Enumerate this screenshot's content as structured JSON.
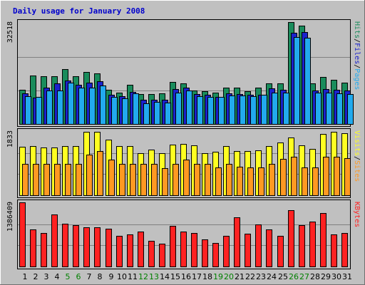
{
  "chart_data": {
    "type": "bar",
    "title": "Daily usage for January 2008",
    "categories": [
      "1",
      "2",
      "3",
      "4",
      "5",
      "6",
      "7",
      "8",
      "9",
      "10",
      "11",
      "12",
      "13",
      "14",
      "15",
      "16",
      "17",
      "18",
      "19",
      "20",
      "21",
      "22",
      "23",
      "24",
      "25",
      "26",
      "27",
      "28",
      "29",
      "30",
      "31"
    ],
    "weekend_categories": [
      "5",
      "6",
      "12",
      "13",
      "19",
      "20",
      "26",
      "27"
    ],
    "panels": [
      {
        "max_label": "32518",
        "ymax": 32518,
        "legend": [
          "Pages",
          "Files",
          "Hits"
        ],
        "series": [
          {
            "name": "Hits",
            "color": "#1a8c5c",
            "values": [
              11000,
              15400,
              15200,
              15200,
              17500,
              15300,
              16500,
              16200,
              11000,
              10100,
              12600,
              9500,
              9500,
              9700,
              13400,
              12900,
              10700,
              10400,
              10100,
              11600,
              11600,
              10400,
              11600,
              13000,
              13000,
              32518,
              31300,
              13000,
              15000,
              14100,
              13100
            ]
          },
          {
            "name": "Files",
            "color": "#1a22cc",
            "values": [
              9800,
              8500,
              11700,
              12900,
              13900,
              12600,
              13300,
              13600,
              9300,
              8800,
              10300,
              7800,
              7800,
              7800,
              11100,
              11600,
              9600,
              9300,
              8600,
              9800,
              9600,
              9300,
              9400,
              11400,
              11000,
              29000,
              29300,
              10800,
              11200,
              11000,
              10800
            ]
          },
          {
            "name": "Pages",
            "color": "#22aaee",
            "values": [
              8900,
              8600,
              10700,
              10800,
              13200,
              11500,
              11700,
              12200,
              8700,
              8200,
              9800,
              6700,
              7100,
              6900,
              9900,
              10700,
              8900,
              8700,
              8600,
              9000,
              9100,
              8800,
              9400,
              10000,
              10000,
              27700,
              27500,
              9900,
              9900,
              9800,
              9500
            ]
          }
        ]
      },
      {
        "max_label": "1833",
        "ymax": 1833,
        "legend": [
          "Sites",
          "Visits"
        ],
        "series": [
          {
            "name": "Visits",
            "color": "#ffff22",
            "values": [
              1375,
              1400,
              1360,
              1370,
              1400,
              1400,
              1820,
              1820,
              1590,
              1410,
              1410,
              1200,
              1310,
              1210,
              1450,
              1460,
              1420,
              1210,
              1240,
              1410,
              1260,
              1260,
              1280,
              1410,
              1510,
              1650,
              1420,
              1320,
              1750,
              1820,
              1770
            ]
          },
          {
            "name": "Sites",
            "color": "#ff9922",
            "values": [
              900,
              900,
              900,
              900,
              900,
              900,
              1160,
              1260,
              1020,
              900,
              900,
              900,
              900,
              780,
              900,
              1010,
              900,
              900,
              800,
              900,
              820,
              800,
              800,
              900,
              1040,
              1100,
              800,
              800,
              1100,
              1100,
              1060
            ]
          }
        ]
      },
      {
        "max_label": "1386409",
        "ymax": 1386409,
        "legend": [
          "KBytes"
        ],
        "series": [
          {
            "name": "KBytes",
            "color": "#ff2222",
            "values": [
              1386409,
              800000,
              730000,
              1130000,
              925000,
              890000,
              850000,
              840000,
              815000,
              660000,
              700000,
              750000,
              560000,
              500000,
              880000,
              750000,
              730000,
              590000,
              510000,
              665000,
              1060000,
              710000,
              910000,
              800000,
              660000,
              1210000,
              900000,
              970000,
              1150000,
              690000,
              720000
            ]
          }
        ]
      }
    ],
    "colors": {
      "title": "#0000cc",
      "background": "#c0c0c0",
      "plot_background": "#c0c0c0",
      "weekday_label": "#000000",
      "weekend_label": "#008000",
      "pages": "#22aaee",
      "files": "#1a22cc",
      "hits": "#1a8c5c",
      "sites": "#ff9922",
      "visits": "#ffff22",
      "kbytes": "#ff2222"
    }
  }
}
